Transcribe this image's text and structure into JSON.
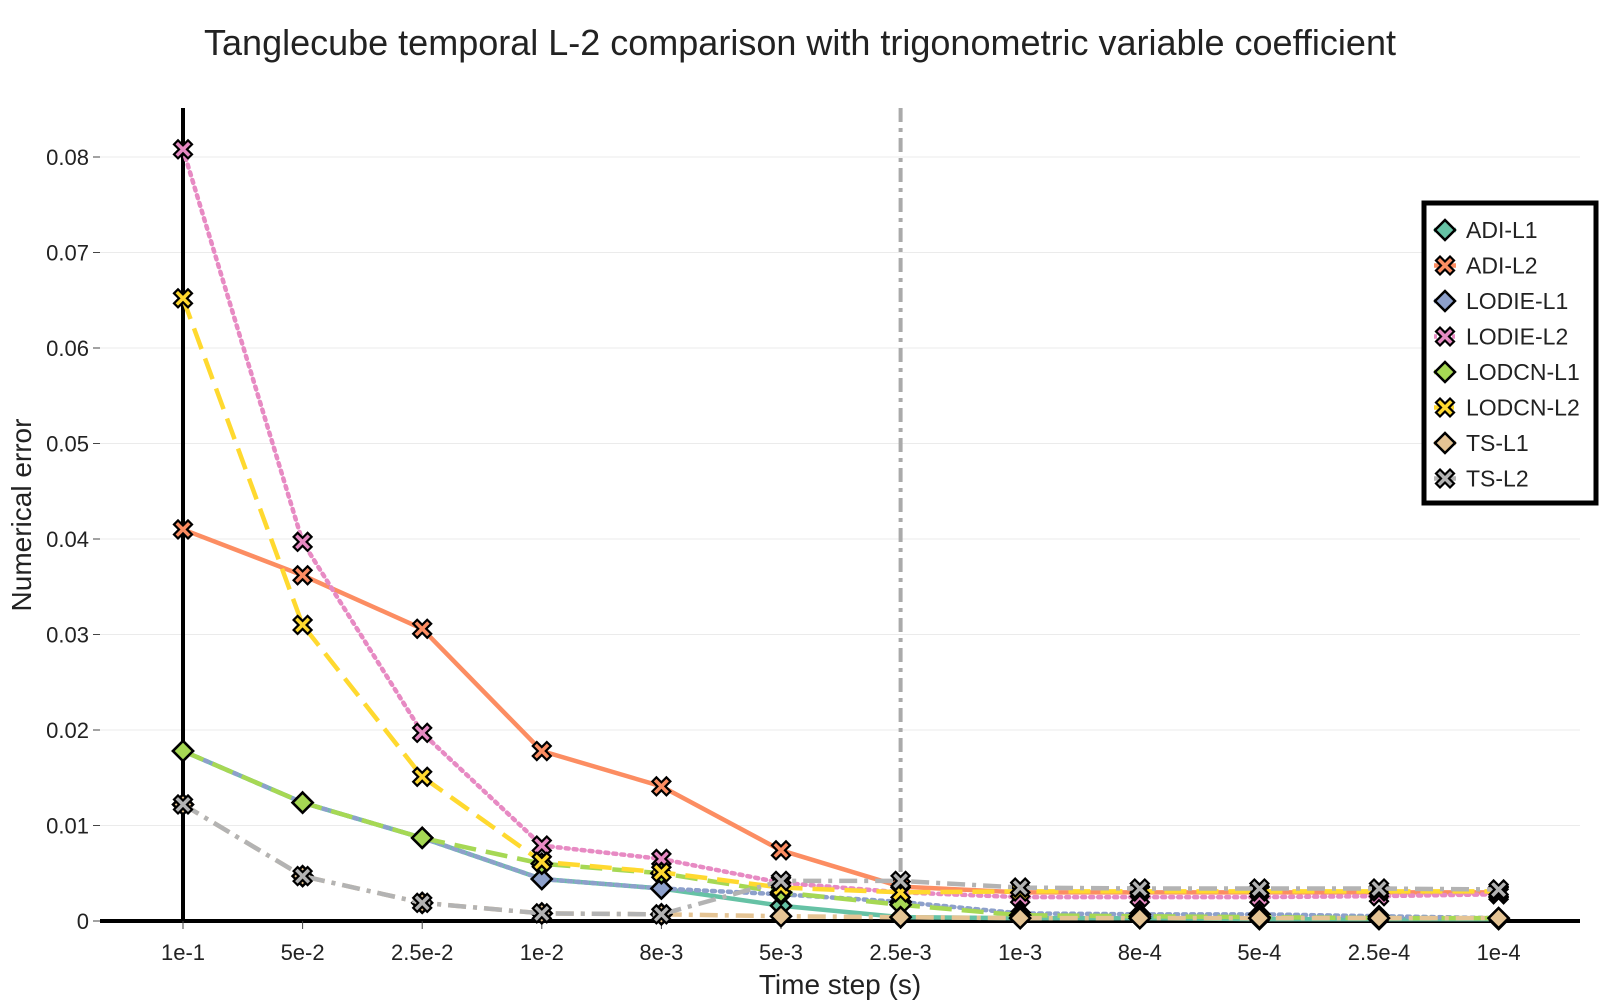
{
  "chart_data": {
    "type": "line",
    "title": "Tanglecube temporal L-2 comparison with trigonometric variable coefficient",
    "xlabel": "Time step (s)",
    "ylabel": "Numerical error",
    "categories": [
      "1e-1",
      "5e-2",
      "2.5e-2",
      "1e-2",
      "8e-3",
      "5e-3",
      "2.5e-3",
      "1e-3",
      "8e-4",
      "5e-4",
      "2.5e-4",
      "1e-4"
    ],
    "ylim": [
      0,
      0.085
    ],
    "yticks": [
      0,
      0.01,
      0.02,
      0.03,
      0.04,
      0.05,
      0.06,
      0.07,
      0.08
    ],
    "ytick_labels": [
      "0",
      "0.01",
      "0.02",
      "0.03",
      "0.04",
      "0.05",
      "0.06",
      "0.07",
      "0.08"
    ],
    "vertical_reference_line": "2.5e-3",
    "legend_position": "top-right",
    "grid": true,
    "series": [
      {
        "name": "ADI-L1",
        "color": "#66c2a5",
        "dash": "solid",
        "marker": "diamond",
        "values": [
          0.0178,
          0.0124,
          0.0087,
          0.0044,
          0.0034,
          0.0016,
          0.0004,
          0.0003,
          0.0003,
          0.0002,
          0.0002,
          0.0002
        ]
      },
      {
        "name": "ADI-L2",
        "color": "#fc8d62",
        "dash": "solid",
        "marker": "x",
        "values": [
          0.041,
          0.0362,
          0.0306,
          0.0178,
          0.0141,
          0.0074,
          0.0036,
          0.003,
          0.003,
          0.003,
          0.003,
          0.003
        ]
      },
      {
        "name": "LODIE-L1",
        "color": "#8da0cb",
        "dash": "dot",
        "marker": "diamond",
        "values": [
          0.0178,
          0.0124,
          0.0087,
          0.0044,
          0.0034,
          0.0028,
          0.002,
          0.0008,
          0.0007,
          0.0007,
          0.0005,
          0.0003
        ]
      },
      {
        "name": "LODIE-L2",
        "color": "#e78ac3",
        "dash": "dot",
        "marker": "x",
        "values": [
          0.0808,
          0.0397,
          0.0197,
          0.0079,
          0.0065,
          0.004,
          0.003,
          0.0025,
          0.0025,
          0.0025,
          0.0026,
          0.0028
        ]
      },
      {
        "name": "LODCN-L1",
        "color": "#a6d854",
        "dash": "dash",
        "marker": "diamond",
        "values": [
          0.0178,
          0.0124,
          0.0087,
          0.006,
          0.005,
          0.003,
          0.0017,
          0.0006,
          0.0005,
          0.0004,
          0.0003,
          0.0003
        ]
      },
      {
        "name": "LODCN-L2",
        "color": "#ffd92f",
        "dash": "dash",
        "marker": "x",
        "values": [
          0.0652,
          0.031,
          0.0151,
          0.0062,
          0.0051,
          0.0035,
          0.003,
          0.0031,
          0.0031,
          0.0031,
          0.0031,
          0.0031
        ]
      },
      {
        "name": "TS-L1",
        "color": "#e5c494",
        "dash": "dashdot",
        "marker": "diamond",
        "values": [
          0.0122,
          0.0047,
          0.0019,
          0.0008,
          0.0007,
          0.0005,
          0.0004,
          0.0003,
          0.0003,
          0.0003,
          0.0003,
          0.0003
        ]
      },
      {
        "name": "TS-L2",
        "color": "#b3b3b3",
        "dash": "dashdot",
        "marker": "x",
        "values": [
          0.0122,
          0.0047,
          0.0019,
          0.0008,
          0.0007,
          0.0042,
          0.0042,
          0.0035,
          0.0034,
          0.0034,
          0.0034,
          0.0033
        ]
      }
    ]
  }
}
